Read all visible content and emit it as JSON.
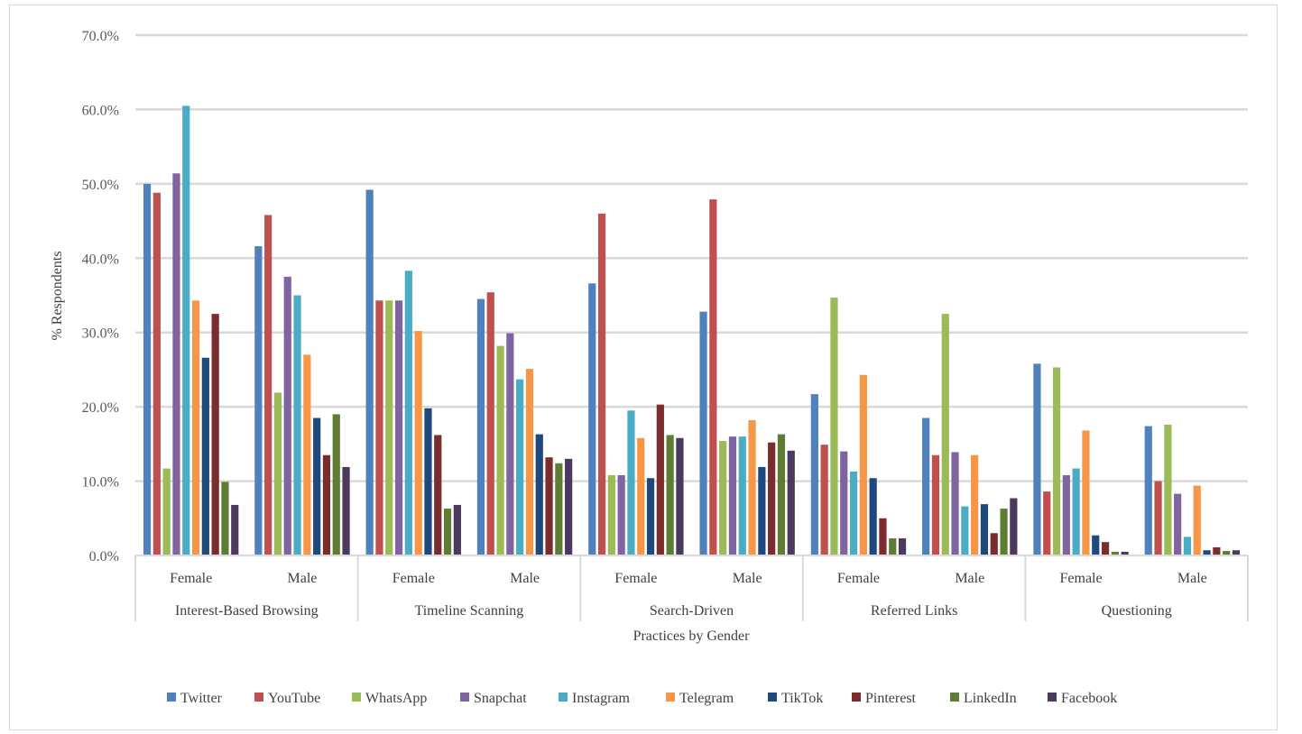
{
  "chart_data": {
    "type": "bar",
    "xlabel": "Practices by Gender",
    "ylabel": "% Respondents",
    "ylim": [
      0,
      70
    ],
    "yticks": [
      "0.0%",
      "10.0%",
      "20.0%",
      "30.0%",
      "40.0%",
      "50.0%",
      "60.0%",
      "70.0%"
    ],
    "grid": true,
    "legend": "bottom",
    "groups": [
      {
        "name": "Interest-Based Browsing",
        "subcategories": [
          "Female",
          "Male"
        ]
      },
      {
        "name": "Timeline Scanning",
        "subcategories": [
          "Female",
          "Male"
        ]
      },
      {
        "name": "Search-Driven",
        "subcategories": [
          "Female",
          "Male"
        ]
      },
      {
        "name": "Referred Links",
        "subcategories": [
          "Female",
          "Male"
        ]
      },
      {
        "name": "Questioning",
        "subcategories": [
          "Female",
          "Male"
        ]
      }
    ],
    "series": [
      {
        "name": "Twitter",
        "color": "#4f81bd",
        "values": [
          50.0,
          41.6,
          49.2,
          34.5,
          36.6,
          32.8,
          21.7,
          18.5,
          25.8,
          17.4
        ]
      },
      {
        "name": "YouTube",
        "color": "#c0504d",
        "values": [
          48.8,
          45.8,
          34.3,
          35.4,
          46.0,
          47.9,
          14.9,
          13.5,
          8.6,
          10.0
        ]
      },
      {
        "name": "WhatsApp",
        "color": "#9bbb59",
        "values": [
          11.7,
          21.9,
          34.3,
          28.2,
          10.8,
          15.4,
          34.7,
          32.5,
          25.3,
          17.6
        ]
      },
      {
        "name": "Snapchat",
        "color": "#8064a2",
        "values": [
          51.4,
          37.5,
          34.3,
          29.9,
          10.8,
          16.0,
          14.0,
          13.9,
          10.8,
          8.3
        ]
      },
      {
        "name": "Instagram",
        "color": "#4bacc6",
        "values": [
          60.5,
          35.0,
          38.3,
          23.7,
          19.5,
          16.0,
          11.3,
          6.6,
          11.7,
          2.5
        ]
      },
      {
        "name": "Telegram",
        "color": "#f79646",
        "values": [
          34.3,
          27.0,
          30.2,
          25.1,
          15.8,
          18.2,
          24.3,
          13.5,
          16.8,
          9.4
        ]
      },
      {
        "name": "TikTok",
        "color": "#1f497d",
        "values": [
          26.6,
          18.5,
          19.8,
          16.3,
          10.4,
          11.9,
          10.4,
          6.9,
          2.7,
          0.7
        ]
      },
      {
        "name": "Pinterest",
        "color": "#7b2c2c",
        "values": [
          32.5,
          13.5,
          16.2,
          13.2,
          20.3,
          15.2,
          5.0,
          3.0,
          1.8,
          1.1
        ]
      },
      {
        "name": "LinkedIn",
        "color": "#5e7d32",
        "values": [
          9.9,
          19.0,
          6.3,
          12.4,
          16.2,
          16.3,
          2.3,
          6.3,
          0.5,
          0.6
        ]
      },
      {
        "name": "Facebook",
        "color": "#4b3a5e",
        "values": [
          6.8,
          11.9,
          6.8,
          13.0,
          15.8,
          14.1,
          2.3,
          7.7,
          0.5,
          0.7
        ]
      }
    ]
  }
}
